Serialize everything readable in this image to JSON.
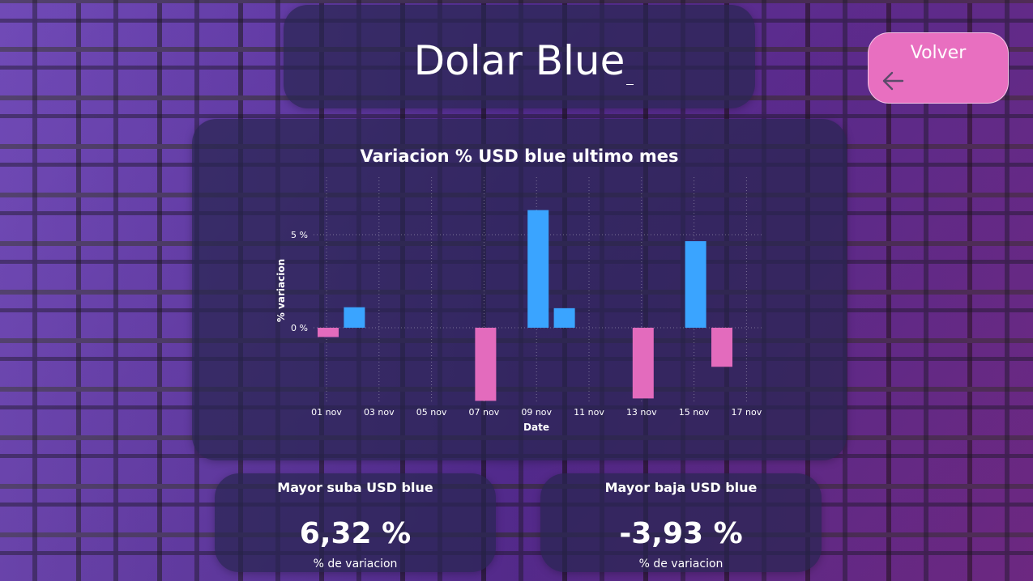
{
  "header": {
    "title": "Dolar Blue"
  },
  "nav": {
    "back_label": "Volver"
  },
  "colors": {
    "positive": "#3aa4ff",
    "negative": "#e36bbd",
    "button": "#e86fc0"
  },
  "chart_data": {
    "type": "bar",
    "title": "Variacion % USD blue ultimo mes",
    "xlabel": "Date",
    "ylabel": "% variacion",
    "x_tick_labels": [
      "01 nov",
      "03 nov",
      "05 nov",
      "07 nov",
      "09 nov",
      "11 nov",
      "13 nov",
      "15 nov",
      "17 nov"
    ],
    "y_tick_labels": [
      "0 %",
      "5 %"
    ],
    "ylim": [
      -4,
      7
    ],
    "grid": true,
    "categories": [
      "01 nov",
      "02 nov",
      "07 nov",
      "09 nov",
      "10 nov",
      "13 nov",
      "15 nov",
      "16 nov"
    ],
    "x_day": [
      1,
      2,
      7,
      9,
      10,
      13,
      15,
      16
    ],
    "values": [
      -0.5,
      1.1,
      -3.93,
      6.32,
      1.05,
      -3.8,
      4.65,
      -2.1
    ]
  },
  "kpis": [
    {
      "title": "Mayor suba USD blue",
      "value": "6,32 %",
      "subtitle": "% de variacion"
    },
    {
      "title": "Mayor baja USD blue",
      "value": "-3,93 %",
      "subtitle": "% de variacion"
    }
  ]
}
